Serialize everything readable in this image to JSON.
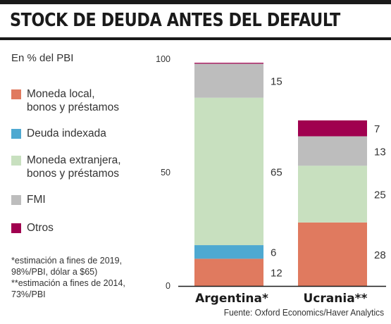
{
  "title": "STOCK DE DEUDA ANTES DEL DEFAULT",
  "unit_label": "En % del PBI",
  "legend": [
    {
      "label": "Moneda local,\nbonos y préstamos",
      "color": "#e07a5f"
    },
    {
      "label": "Deuda indexada",
      "color": "#4ea9d1"
    },
    {
      "label": "Moneda extranjera,\nbonos y préstamos",
      "color": "#c8e0bf"
    },
    {
      "label": "FMI",
      "color": "#bdbdbd"
    },
    {
      "label": "Otros",
      "color": "#a0004f"
    }
  ],
  "notes": [
    "*estimación a fines de 2019,\n98%/PBI, dólar a $65)",
    "**estimación a fines de 2014,\n73%/PBI"
  ],
  "source": "Fuente: Oxford Economics/Haver Analytics",
  "chart_data": {
    "type": "bar",
    "stacked": true,
    "categories": [
      "Argentina*",
      "Ucrania**"
    ],
    "series": [
      {
        "name": "Moneda local, bonos y préstamos",
        "color": "#e07a5f",
        "values": [
          12,
          28
        ],
        "labels": [
          "12",
          "28"
        ]
      },
      {
        "name": "Deuda indexada",
        "color": "#4ea9d1",
        "values": [
          6,
          0
        ],
        "labels": [
          "6",
          ""
        ]
      },
      {
        "name": "Moneda extranjera, bonos y préstamos",
        "color": "#c8e0bf",
        "values": [
          65,
          25
        ],
        "labels": [
          "65",
          "25"
        ]
      },
      {
        "name": "FMI",
        "color": "#bdbdbd",
        "values": [
          15,
          13
        ],
        "labels": [
          "15",
          "13"
        ]
      },
      {
        "name": "Otros",
        "color": "#a0004f",
        "values": [
          0.4,
          7
        ],
        "labels": [
          "",
          "7"
        ]
      }
    ],
    "ylim": [
      0,
      100
    ],
    "yticks": [
      "0",
      "50",
      "100"
    ],
    "grid": false,
    "legend_position": "left"
  }
}
